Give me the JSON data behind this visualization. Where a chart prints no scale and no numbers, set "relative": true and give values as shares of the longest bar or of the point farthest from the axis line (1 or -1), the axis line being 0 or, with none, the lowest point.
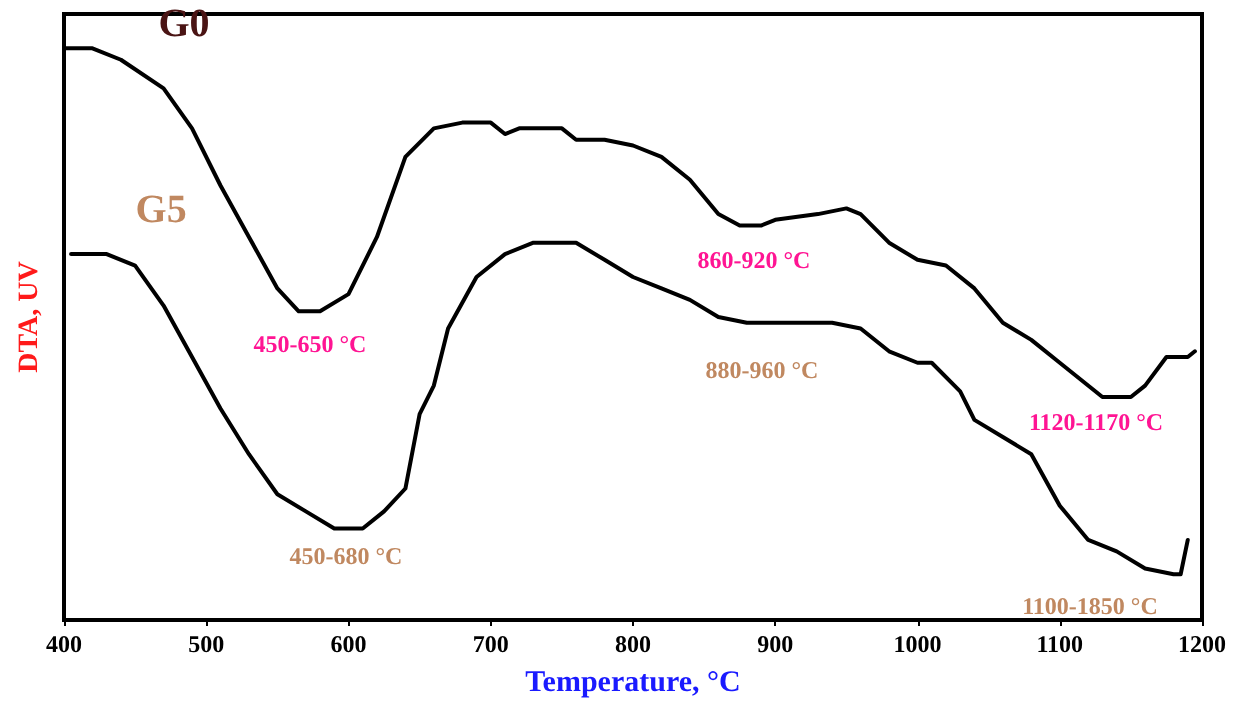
{
  "chart_data": {
    "type": "line",
    "relative": true,
    "xlabel": "Temperature, °C",
    "ylabel": "DTA, UV",
    "xlim": [
      400,
      1200
    ],
    "xticks": [
      400,
      500,
      600,
      700,
      800,
      900,
      1000,
      1100,
      1200
    ],
    "grid": false,
    "legend": false,
    "marker": "none",
    "line_style": "solid",
    "series": [
      {
        "name": "G0",
        "color": "#000000",
        "x": [
          400,
          420,
          440,
          470,
          490,
          510,
          530,
          550,
          565,
          580,
          600,
          620,
          640,
          660,
          680,
          700,
          710,
          720,
          750,
          760,
          780,
          800,
          820,
          840,
          860,
          875,
          890,
          900,
          930,
          950,
          960,
          980,
          1000,
          1020,
          1040,
          1060,
          1080,
          1100,
          1130,
          1150,
          1160,
          1175,
          1190,
          1195
        ],
        "values": [
          1.0,
          1.0,
          0.98,
          0.93,
          0.86,
          0.76,
          0.67,
          0.58,
          0.54,
          0.54,
          0.57,
          0.67,
          0.81,
          0.86,
          0.87,
          0.87,
          0.85,
          0.86,
          0.86,
          0.84,
          0.84,
          0.83,
          0.81,
          0.77,
          0.71,
          0.69,
          0.69,
          0.7,
          0.71,
          0.72,
          0.71,
          0.66,
          0.63,
          0.62,
          0.58,
          0.52,
          0.49,
          0.45,
          0.39,
          0.39,
          0.41,
          0.46,
          0.46,
          0.47
        ]
      },
      {
        "name": "G5",
        "color": "#000000",
        "x": [
          405,
          430,
          450,
          470,
          490,
          510,
          530,
          550,
          570,
          590,
          610,
          625,
          640,
          650,
          660,
          670,
          690,
          710,
          730,
          760,
          780,
          800,
          820,
          840,
          860,
          880,
          900,
          940,
          960,
          980,
          1000,
          1010,
          1030,
          1040,
          1060,
          1080,
          1100,
          1120,
          1140,
          1160,
          1180,
          1185,
          1190
        ],
        "values": [
          0.64,
          0.64,
          0.62,
          0.55,
          0.46,
          0.37,
          0.29,
          0.22,
          0.19,
          0.16,
          0.16,
          0.19,
          0.23,
          0.36,
          0.41,
          0.51,
          0.6,
          0.64,
          0.66,
          0.66,
          0.63,
          0.6,
          0.58,
          0.56,
          0.53,
          0.52,
          0.52,
          0.52,
          0.51,
          0.47,
          0.45,
          0.45,
          0.4,
          0.35,
          0.32,
          0.29,
          0.2,
          0.14,
          0.12,
          0.09,
          0.08,
          0.08,
          0.14
        ]
      }
    ],
    "annotations": [
      "450-650 °C",
      "450-680 °C",
      "860-920 °C",
      "880-960 °C",
      "1120-1170 °C",
      "1100-1850 °C"
    ]
  }
}
